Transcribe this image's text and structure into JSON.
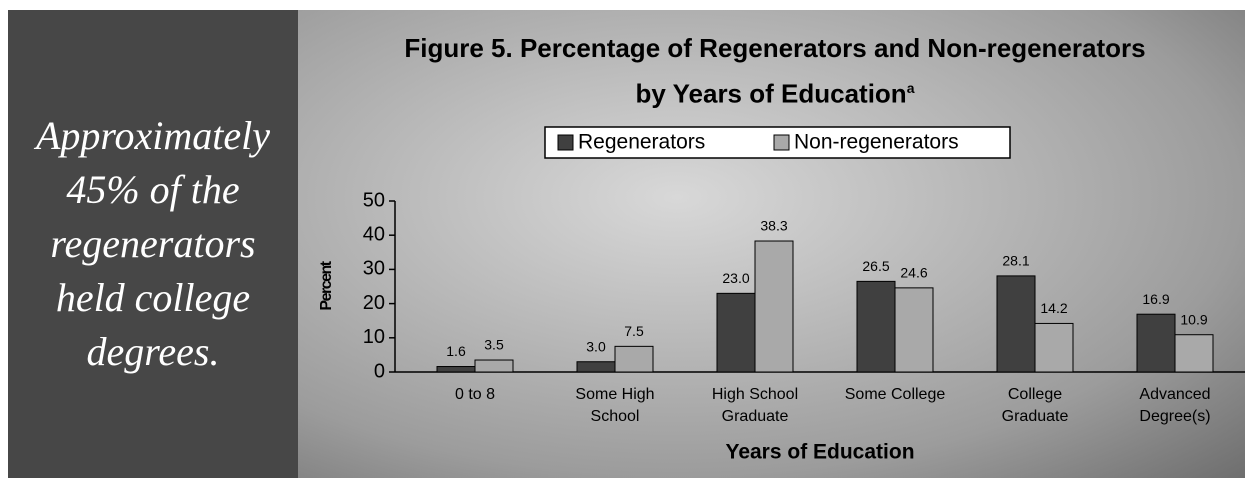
{
  "side_text": "Approximately 45% of  the regenerators held college degrees.",
  "chart_data": {
    "type": "bar",
    "title": "Figure 5.  Percentage of Regenerators and Non-regenerators by Years of Education",
    "title_note": "a",
    "x_label": "Years of Education",
    "y_label": "Percent",
    "categories": [
      "0 to 8",
      "Some High School",
      "High School Graduate",
      "Some College",
      "College Graduate",
      "Advanced Degree(s)"
    ],
    "series": [
      {
        "name": "Regenerators",
        "color": "#404040",
        "values": [
          1.6,
          3.0,
          23.0,
          26.5,
          28.1,
          16.9
        ],
        "value_labels": [
          "1.6",
          "3.0",
          "23.0",
          "26.5",
          "28.1",
          "16.9"
        ]
      },
      {
        "name": "Non-regenerators",
        "color": "#a9a9a9",
        "values": [
          3.5,
          7.5,
          38.3,
          24.6,
          14.2,
          10.9
        ],
        "value_labels": [
          "3.5",
          "7.5",
          "38.3",
          "24.6",
          "14.2",
          "10.9"
        ]
      }
    ],
    "ylim": [
      0,
      50
    ],
    "yticks": [
      0,
      10,
      20,
      30,
      40,
      50
    ],
    "legend": "top"
  }
}
